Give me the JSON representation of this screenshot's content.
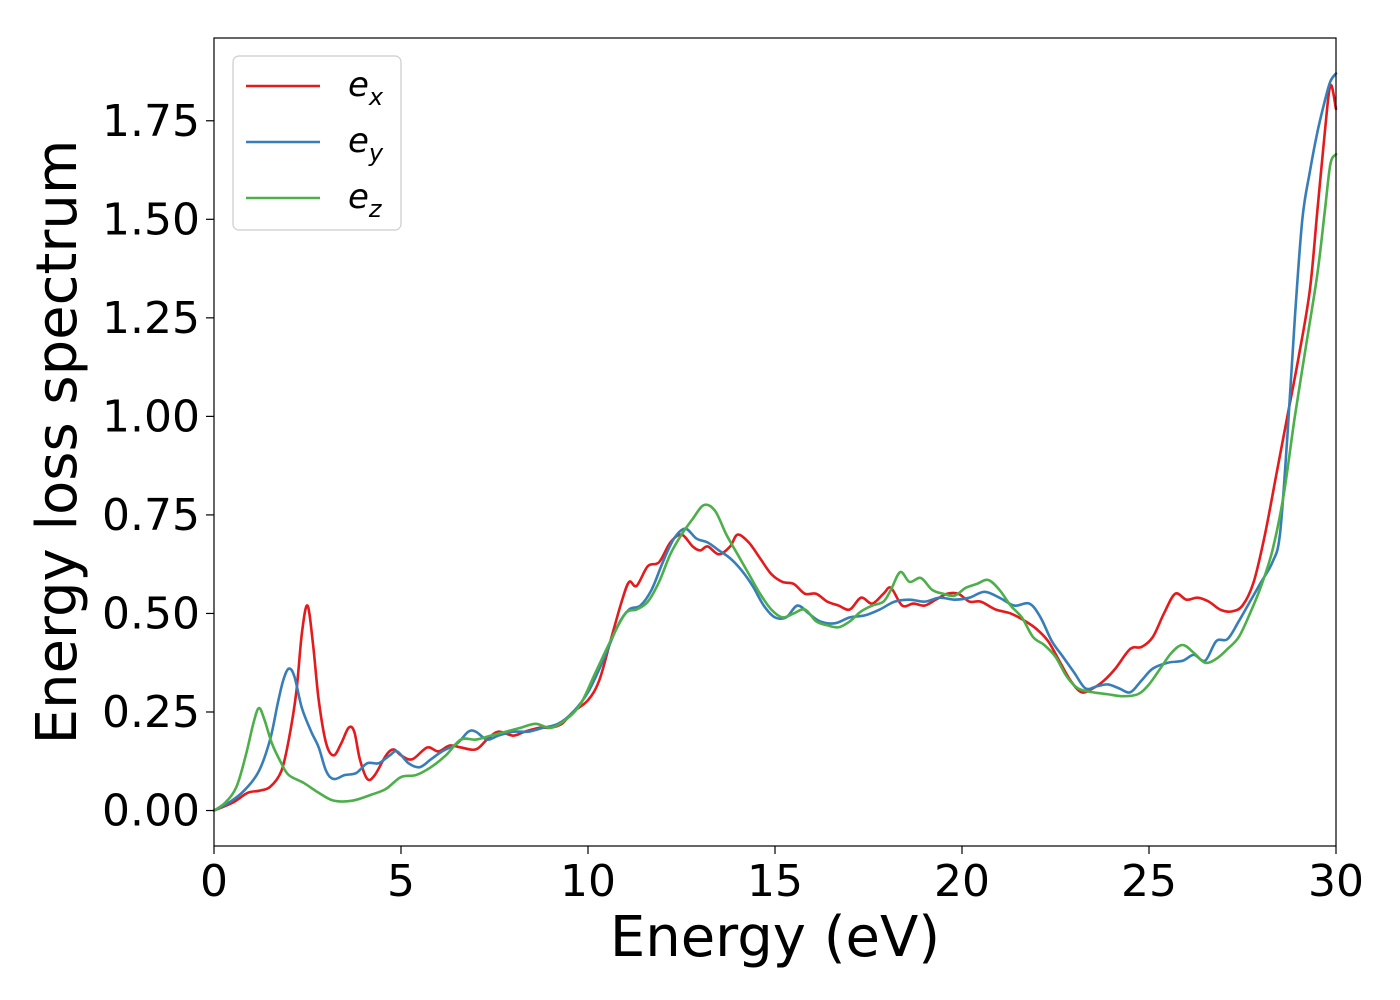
{
  "chart_data": {
    "type": "line",
    "title": "",
    "xlabel": "Energy (eV)",
    "ylabel": "Energy loss spectrum",
    "xlim": [
      0,
      30
    ],
    "ylim": [
      -0.09,
      1.96
    ],
    "xticks": [
      0,
      5,
      10,
      15,
      20,
      25,
      30
    ],
    "xtick_labels": [
      "0",
      "5",
      "10",
      "15",
      "20",
      "25",
      "30"
    ],
    "yticks": [
      0.0,
      0.25,
      0.5,
      0.75,
      1.0,
      1.25,
      1.5,
      1.75
    ],
    "ytick_labels": [
      "0.00",
      "0.25",
      "0.50",
      "0.75",
      "1.00",
      "1.25",
      "1.50",
      "1.75"
    ],
    "grid": false,
    "legend_position": "top-left",
    "series": [
      {
        "name": "e_x",
        "legend_base": "e",
        "legend_sub": "x",
        "color": "#e41a1c",
        "points": [
          [
            0,
            0
          ],
          [
            0.5,
            0.02
          ],
          [
            0.9,
            0.045
          ],
          [
            1.2,
            0.05
          ],
          [
            1.5,
            0.06
          ],
          [
            1.8,
            0.1
          ],
          [
            2.0,
            0.18
          ],
          [
            2.2,
            0.3
          ],
          [
            2.35,
            0.45
          ],
          [
            2.5,
            0.52
          ],
          [
            2.65,
            0.42
          ],
          [
            2.8,
            0.28
          ],
          [
            3.0,
            0.17
          ],
          [
            3.2,
            0.14
          ],
          [
            3.4,
            0.17
          ],
          [
            3.6,
            0.21
          ],
          [
            3.75,
            0.2
          ],
          [
            3.9,
            0.13
          ],
          [
            4.1,
            0.08
          ],
          [
            4.3,
            0.09
          ],
          [
            4.6,
            0.14
          ],
          [
            4.8,
            0.155
          ],
          [
            5.0,
            0.14
          ],
          [
            5.3,
            0.13
          ],
          [
            5.7,
            0.16
          ],
          [
            6.0,
            0.15
          ],
          [
            6.3,
            0.165
          ],
          [
            6.6,
            0.16
          ],
          [
            7.0,
            0.155
          ],
          [
            7.3,
            0.18
          ],
          [
            7.6,
            0.2
          ],
          [
            8.0,
            0.19
          ],
          [
            8.3,
            0.2
          ],
          [
            8.7,
            0.21
          ],
          [
            9.0,
            0.21
          ],
          [
            9.3,
            0.22
          ],
          [
            9.6,
            0.25
          ],
          [
            10.0,
            0.28
          ],
          [
            10.3,
            0.33
          ],
          [
            10.6,
            0.43
          ],
          [
            10.9,
            0.53
          ],
          [
            11.1,
            0.58
          ],
          [
            11.3,
            0.57
          ],
          [
            11.6,
            0.62
          ],
          [
            11.9,
            0.63
          ],
          [
            12.2,
            0.68
          ],
          [
            12.5,
            0.7
          ],
          [
            12.8,
            0.67
          ],
          [
            13.0,
            0.66
          ],
          [
            13.2,
            0.67
          ],
          [
            13.5,
            0.65
          ],
          [
            13.8,
            0.67
          ],
          [
            14.0,
            0.7
          ],
          [
            14.3,
            0.68
          ],
          [
            14.6,
            0.64
          ],
          [
            14.9,
            0.6
          ],
          [
            15.2,
            0.58
          ],
          [
            15.5,
            0.575
          ],
          [
            15.8,
            0.55
          ],
          [
            16.1,
            0.55
          ],
          [
            16.4,
            0.53
          ],
          [
            16.7,
            0.52
          ],
          [
            17.0,
            0.51
          ],
          [
            17.3,
            0.54
          ],
          [
            17.6,
            0.525
          ],
          [
            17.9,
            0.55
          ],
          [
            18.1,
            0.565
          ],
          [
            18.4,
            0.52
          ],
          [
            18.7,
            0.525
          ],
          [
            19.0,
            0.52
          ],
          [
            19.3,
            0.535
          ],
          [
            19.6,
            0.55
          ],
          [
            19.9,
            0.55
          ],
          [
            20.2,
            0.53
          ],
          [
            20.5,
            0.53
          ],
          [
            20.9,
            0.51
          ],
          [
            21.3,
            0.5
          ],
          [
            21.7,
            0.48
          ],
          [
            22.0,
            0.46
          ],
          [
            22.3,
            0.43
          ],
          [
            22.6,
            0.38
          ],
          [
            22.9,
            0.33
          ],
          [
            23.2,
            0.3
          ],
          [
            23.5,
            0.31
          ],
          [
            23.8,
            0.33
          ],
          [
            24.1,
            0.36
          ],
          [
            24.5,
            0.41
          ],
          [
            24.8,
            0.415
          ],
          [
            25.1,
            0.44
          ],
          [
            25.4,
            0.5
          ],
          [
            25.7,
            0.55
          ],
          [
            26.0,
            0.535
          ],
          [
            26.3,
            0.54
          ],
          [
            26.6,
            0.53
          ],
          [
            26.9,
            0.51
          ],
          [
            27.2,
            0.505
          ],
          [
            27.5,
            0.52
          ],
          [
            27.8,
            0.58
          ],
          [
            28.1,
            0.7
          ],
          [
            28.4,
            0.85
          ],
          [
            28.7,
            1.0
          ],
          [
            29.0,
            1.15
          ],
          [
            29.3,
            1.32
          ],
          [
            29.5,
            1.52
          ],
          [
            29.7,
            1.72
          ],
          [
            29.85,
            1.84
          ],
          [
            30.0,
            1.78
          ]
        ]
      },
      {
        "name": "e_y",
        "legend_base": "e",
        "legend_sub": "y",
        "color": "#377eb8",
        "points": [
          [
            0,
            0
          ],
          [
            0.4,
            0.02
          ],
          [
            0.8,
            0.05
          ],
          [
            1.2,
            0.1
          ],
          [
            1.5,
            0.18
          ],
          [
            1.7,
            0.27
          ],
          [
            1.85,
            0.33
          ],
          [
            2.0,
            0.36
          ],
          [
            2.15,
            0.34
          ],
          [
            2.35,
            0.26
          ],
          [
            2.6,
            0.2
          ],
          [
            2.8,
            0.16
          ],
          [
            3.0,
            0.1
          ],
          [
            3.2,
            0.08
          ],
          [
            3.5,
            0.09
          ],
          [
            3.8,
            0.095
          ],
          [
            4.1,
            0.12
          ],
          [
            4.4,
            0.12
          ],
          [
            4.7,
            0.14
          ],
          [
            4.9,
            0.15
          ],
          [
            5.2,
            0.12
          ],
          [
            5.5,
            0.11
          ],
          [
            5.8,
            0.13
          ],
          [
            6.1,
            0.15
          ],
          [
            6.5,
            0.17
          ],
          [
            6.8,
            0.2
          ],
          [
            7.0,
            0.2
          ],
          [
            7.3,
            0.18
          ],
          [
            7.6,
            0.19
          ],
          [
            8.0,
            0.2
          ],
          [
            8.4,
            0.2
          ],
          [
            8.8,
            0.21
          ],
          [
            9.2,
            0.22
          ],
          [
            9.6,
            0.25
          ],
          [
            10.0,
            0.3
          ],
          [
            10.4,
            0.38
          ],
          [
            10.8,
            0.47
          ],
          [
            11.1,
            0.51
          ],
          [
            11.4,
            0.52
          ],
          [
            11.7,
            0.56
          ],
          [
            12.0,
            0.63
          ],
          [
            12.3,
            0.69
          ],
          [
            12.6,
            0.715
          ],
          [
            12.9,
            0.69
          ],
          [
            13.2,
            0.68
          ],
          [
            13.5,
            0.66
          ],
          [
            13.8,
            0.64
          ],
          [
            14.1,
            0.61
          ],
          [
            14.4,
            0.57
          ],
          [
            14.7,
            0.52
          ],
          [
            15.0,
            0.49
          ],
          [
            15.3,
            0.49
          ],
          [
            15.6,
            0.52
          ],
          [
            15.9,
            0.5
          ],
          [
            16.2,
            0.48
          ],
          [
            16.6,
            0.475
          ],
          [
            17.0,
            0.49
          ],
          [
            17.4,
            0.495
          ],
          [
            17.8,
            0.51
          ],
          [
            18.2,
            0.53
          ],
          [
            18.6,
            0.535
          ],
          [
            19.0,
            0.53
          ],
          [
            19.4,
            0.54
          ],
          [
            19.8,
            0.535
          ],
          [
            20.2,
            0.54
          ],
          [
            20.6,
            0.555
          ],
          [
            21.0,
            0.54
          ],
          [
            21.4,
            0.52
          ],
          [
            21.8,
            0.525
          ],
          [
            22.1,
            0.49
          ],
          [
            22.4,
            0.43
          ],
          [
            22.7,
            0.39
          ],
          [
            23.0,
            0.35
          ],
          [
            23.3,
            0.31
          ],
          [
            23.6,
            0.315
          ],
          [
            23.9,
            0.32
          ],
          [
            24.2,
            0.31
          ],
          [
            24.5,
            0.3
          ],
          [
            24.8,
            0.33
          ],
          [
            25.1,
            0.36
          ],
          [
            25.5,
            0.375
          ],
          [
            25.9,
            0.38
          ],
          [
            26.2,
            0.395
          ],
          [
            26.5,
            0.38
          ],
          [
            26.8,
            0.43
          ],
          [
            27.1,
            0.435
          ],
          [
            27.4,
            0.48
          ],
          [
            27.7,
            0.53
          ],
          [
            28.0,
            0.58
          ],
          [
            28.3,
            0.63
          ],
          [
            28.5,
            0.7
          ],
          [
            28.7,
            0.95
          ],
          [
            28.9,
            1.25
          ],
          [
            29.1,
            1.5
          ],
          [
            29.3,
            1.62
          ],
          [
            29.5,
            1.72
          ],
          [
            29.7,
            1.8
          ],
          [
            29.85,
            1.85
          ],
          [
            30.0,
            1.87
          ]
        ]
      },
      {
        "name": "e_z",
        "legend_base": "e",
        "legend_sub": "z",
        "color": "#4daf4a",
        "points": [
          [
            0,
            0
          ],
          [
            0.3,
            0.02
          ],
          [
            0.6,
            0.06
          ],
          [
            0.85,
            0.14
          ],
          [
            1.05,
            0.22
          ],
          [
            1.2,
            0.26
          ],
          [
            1.35,
            0.23
          ],
          [
            1.55,
            0.17
          ],
          [
            1.8,
            0.12
          ],
          [
            2.0,
            0.09
          ],
          [
            2.4,
            0.07
          ],
          [
            2.8,
            0.045
          ],
          [
            3.2,
            0.025
          ],
          [
            3.7,
            0.025
          ],
          [
            4.2,
            0.04
          ],
          [
            4.6,
            0.055
          ],
          [
            5.0,
            0.085
          ],
          [
            5.4,
            0.09
          ],
          [
            5.8,
            0.11
          ],
          [
            6.2,
            0.14
          ],
          [
            6.6,
            0.18
          ],
          [
            7.0,
            0.18
          ],
          [
            7.4,
            0.19
          ],
          [
            7.8,
            0.2
          ],
          [
            8.2,
            0.21
          ],
          [
            8.6,
            0.22
          ],
          [
            9.0,
            0.21
          ],
          [
            9.4,
            0.23
          ],
          [
            9.8,
            0.27
          ],
          [
            10.2,
            0.35
          ],
          [
            10.6,
            0.43
          ],
          [
            11.0,
            0.5
          ],
          [
            11.3,
            0.51
          ],
          [
            11.6,
            0.53
          ],
          [
            11.9,
            0.58
          ],
          [
            12.2,
            0.65
          ],
          [
            12.5,
            0.7
          ],
          [
            12.8,
            0.74
          ],
          [
            13.1,
            0.775
          ],
          [
            13.4,
            0.76
          ],
          [
            13.7,
            0.7
          ],
          [
            14.0,
            0.65
          ],
          [
            14.3,
            0.6
          ],
          [
            14.6,
            0.55
          ],
          [
            14.9,
            0.51
          ],
          [
            15.2,
            0.49
          ],
          [
            15.5,
            0.5
          ],
          [
            15.8,
            0.51
          ],
          [
            16.1,
            0.48
          ],
          [
            16.4,
            0.47
          ],
          [
            16.7,
            0.465
          ],
          [
            17.0,
            0.48
          ],
          [
            17.3,
            0.505
          ],
          [
            17.6,
            0.52
          ],
          [
            17.9,
            0.53
          ],
          [
            18.1,
            0.56
          ],
          [
            18.35,
            0.605
          ],
          [
            18.6,
            0.58
          ],
          [
            18.9,
            0.59
          ],
          [
            19.2,
            0.56
          ],
          [
            19.5,
            0.55
          ],
          [
            19.8,
            0.545
          ],
          [
            20.1,
            0.565
          ],
          [
            20.4,
            0.575
          ],
          [
            20.7,
            0.585
          ],
          [
            21.0,
            0.56
          ],
          [
            21.3,
            0.52
          ],
          [
            21.6,
            0.49
          ],
          [
            21.9,
            0.44
          ],
          [
            22.2,
            0.42
          ],
          [
            22.5,
            0.39
          ],
          [
            22.8,
            0.34
          ],
          [
            23.1,
            0.31
          ],
          [
            23.5,
            0.3
          ],
          [
            23.9,
            0.295
          ],
          [
            24.3,
            0.29
          ],
          [
            24.7,
            0.295
          ],
          [
            25.0,
            0.32
          ],
          [
            25.3,
            0.36
          ],
          [
            25.6,
            0.4
          ],
          [
            25.9,
            0.42
          ],
          [
            26.2,
            0.4
          ],
          [
            26.5,
            0.375
          ],
          [
            26.8,
            0.385
          ],
          [
            27.1,
            0.41
          ],
          [
            27.4,
            0.44
          ],
          [
            27.7,
            0.5
          ],
          [
            28.0,
            0.57
          ],
          [
            28.3,
            0.66
          ],
          [
            28.6,
            0.8
          ],
          [
            28.9,
            1.0
          ],
          [
            29.2,
            1.18
          ],
          [
            29.5,
            1.36
          ],
          [
            29.7,
            1.52
          ],
          [
            29.85,
            1.64
          ],
          [
            30.0,
            1.665
          ]
        ]
      }
    ]
  }
}
